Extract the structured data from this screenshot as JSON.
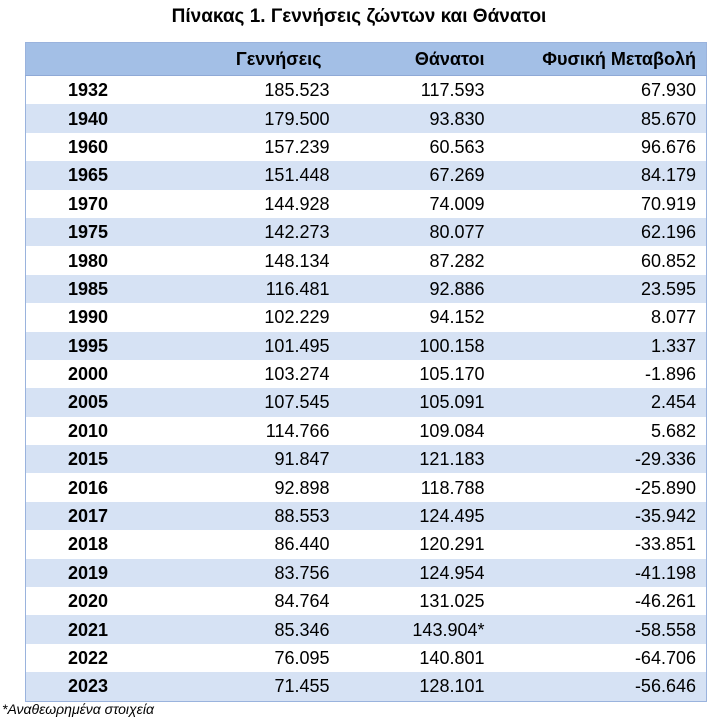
{
  "title": "Πίνακας 1. Γεννήσεις ζώντων και Θάνατοι",
  "headers": [
    "",
    "Γεννήσεις",
    "Θάνατοι",
    "Φυσική Μεταβολή"
  ],
  "rows": [
    [
      "1932",
      "185.523",
      "117.593",
      "67.930"
    ],
    [
      "1940",
      "179.500",
      "93.830",
      "85.670"
    ],
    [
      "1960",
      "157.239",
      "60.563",
      "96.676"
    ],
    [
      "1965",
      "151.448",
      "67.269",
      "84.179"
    ],
    [
      "1970",
      "144.928",
      "74.009",
      "70.919"
    ],
    [
      "1975",
      "142.273",
      "80.077",
      "62.196"
    ],
    [
      "1980",
      "148.134",
      "87.282",
      "60.852"
    ],
    [
      "1985",
      "116.481",
      "92.886",
      "23.595"
    ],
    [
      "1990",
      "102.229",
      "94.152",
      "8.077"
    ],
    [
      "1995",
      "101.495",
      "100.158",
      "1.337"
    ],
    [
      "2000",
      "103.274",
      "105.170",
      "-1.896"
    ],
    [
      "2005",
      "107.545",
      "105.091",
      "2.454"
    ],
    [
      "2010",
      "114.766",
      "109.084",
      "5.682"
    ],
    [
      "2015",
      "91.847",
      "121.183",
      "-29.336"
    ],
    [
      "2016",
      "92.898",
      "118.788",
      "-25.890"
    ],
    [
      "2017",
      "88.553",
      "124.495",
      "-35.942"
    ],
    [
      "2018",
      "86.440",
      "120.291",
      "-33.851"
    ],
    [
      "2019",
      "83.756",
      "124.954",
      "-41.198"
    ],
    [
      "2020",
      "84.764",
      "131.025",
      "-46.261"
    ],
    [
      "2021",
      "85.346",
      "143.904*",
      "-58.558"
    ],
    [
      "2022",
      "76.095",
      "140.801",
      "-64.706"
    ],
    [
      "2023",
      "71.455",
      "128.101",
      "-56.646"
    ]
  ],
  "footnote": "*Αναθεωρημένα στοιχεία",
  "colors": {
    "header_bg": "#a3bfe6",
    "band_bg": "#d6e2f4"
  }
}
